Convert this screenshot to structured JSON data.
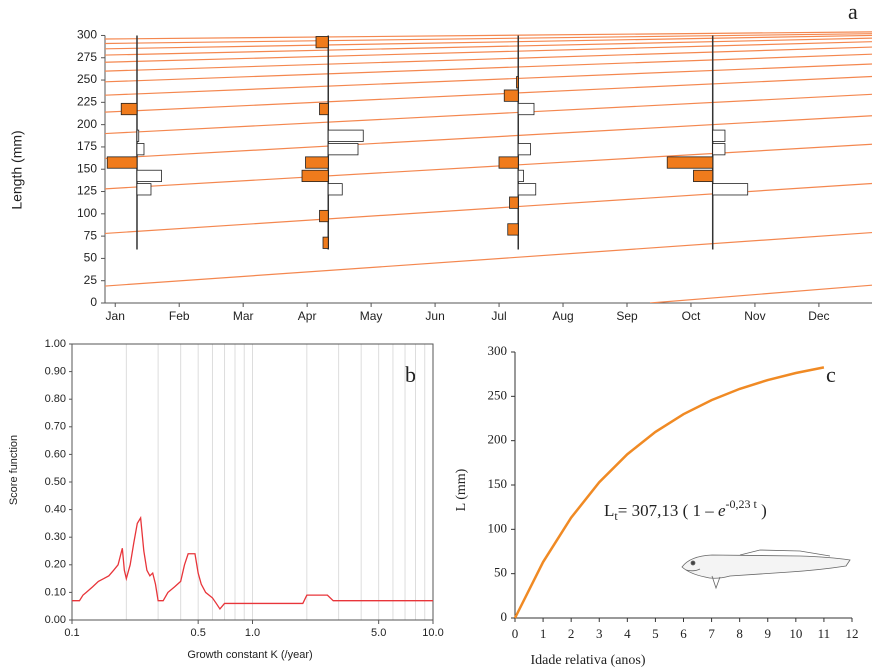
{
  "chart_data": [
    {
      "type": "length-frequency",
      "label": "a",
      "ylabel": "Length (mm)",
      "categories": [
        "Jan",
        "Feb",
        "Mar",
        "Apr",
        "May",
        "Jun",
        "Jul",
        "Aug",
        "Sep",
        "Oct",
        "Nov",
        "Dec"
      ],
      "xlim": [
        -0.16,
        11.83
      ],
      "ylim": [
        0,
        305
      ],
      "yticks": [
        0,
        25,
        50,
        75,
        100,
        125,
        150,
        175,
        200,
        225,
        250,
        275,
        300
      ],
      "bins": [
        60,
        75,
        90,
        105,
        120,
        135,
        150,
        165,
        180,
        195,
        210,
        225,
        240,
        255,
        270,
        285,
        300
      ],
      "positive_color": "#f07b1c",
      "negative_color": "#ffffff",
      "curve_color": "#f4874f",
      "samples": [
        {
          "x": 0.34,
          "values": [
            0,
            0,
            0,
            0,
            -0.4,
            -0.7,
            0.85,
            -0.2,
            -0.05,
            0,
            0.45,
            0,
            0,
            0,
            0,
            0
          ]
        },
        {
          "x": 3.33,
          "values": [
            0.15,
            0,
            0.25,
            0,
            -0.4,
            0.75,
            0.65,
            -0.85,
            -1.0,
            0,
            0.25,
            0,
            0,
            0,
            0,
            0.35
          ]
        },
        {
          "x": 6.3,
          "values": [
            0,
            0.3,
            0,
            0.25,
            -0.5,
            -0.15,
            0.55,
            -0.35,
            0,
            0,
            -0.45,
            0.4,
            0.05,
            0,
            0,
            0
          ]
        },
        {
          "x": 9.34,
          "values": [
            0,
            0,
            0,
            0,
            -1.0,
            0.55,
            1.3,
            -0.35,
            -0.35,
            0,
            0,
            0,
            0,
            0,
            0,
            0
          ]
        }
      ],
      "curves": [
        {
          "x": [
            -0.16,
            11.83
          ],
          "values": [
            19,
            79
          ]
        },
        {
          "x": [
            -0.16,
            11.83
          ],
          "values": [
            78,
            134
          ]
        },
        {
          "x": [
            -0.16,
            11.83
          ],
          "values": [
            128,
            178
          ]
        },
        {
          "x": [
            -0.16,
            11.83
          ],
          "values": [
            162,
            210
          ]
        },
        {
          "x": [
            -0.16,
            11.83
          ],
          "values": [
            190,
            234
          ]
        },
        {
          "x": [
            -0.16,
            11.83
          ],
          "values": [
            214,
            254
          ]
        },
        {
          "x": [
            -0.16,
            11.83
          ],
          "values": [
            233,
            268
          ]
        },
        {
          "x": [
            -0.16,
            11.83
          ],
          "values": [
            248,
            279
          ]
        },
        {
          "x": [
            -0.16,
            11.83
          ],
          "values": [
            260,
            287
          ]
        },
        {
          "x": [
            -0.16,
            11.83
          ],
          "values": [
            270,
            293
          ]
        },
        {
          "x": [
            -0.16,
            11.83
          ],
          "values": [
            278,
            297
          ]
        },
        {
          "x": [
            -0.16,
            11.83
          ],
          "values": [
            285,
            300
          ]
        },
        {
          "x": [
            -0.16,
            11.83
          ],
          "values": [
            291,
            302
          ]
        },
        {
          "x": [
            -0.16,
            11.83
          ],
          "values": [
            296,
            304
          ]
        },
        {
          "x": [
            8.36,
            11.83
          ],
          "values": [
            0,
            20
          ]
        }
      ]
    },
    {
      "type": "log-line",
      "label": "b",
      "xlabel": "Growth constant K (/year)",
      "ylabel": "Score function",
      "color": "#e8353a",
      "xlim": [
        0.1,
        10
      ],
      "ylim": [
        0,
        1
      ],
      "xticks": [
        0.1,
        0.5,
        {
          "value": 1,
          "label": "1.0"
        },
        {
          "value": 5,
          "label": "5.0"
        },
        {
          "value": 10,
          "label": "10.0"
        }
      ],
      "xgrid": [
        0.2,
        0.3,
        0.4,
        0.5,
        0.6,
        0.7,
        0.8,
        0.9,
        1,
        2,
        3,
        4,
        5,
        6,
        7,
        8,
        9
      ],
      "yticks": [
        {
          "value": 0,
          "label": "0.00"
        },
        {
          "value": 0.1,
          "label": "0.10"
        },
        {
          "value": 0.2,
          "label": "0.20"
        },
        {
          "value": 0.3,
          "label": "0.30"
        },
        {
          "value": 0.4,
          "label": "0.40"
        },
        {
          "value": 0.5,
          "label": "0.50"
        },
        {
          "value": 0.6,
          "label": "0.60"
        },
        {
          "value": 0.7,
          "label": "0.70"
        },
        {
          "value": 0.8,
          "label": "0.80"
        },
        {
          "value": 0.9,
          "label": "0.90"
        },
        {
          "value": 1,
          "label": "1.00"
        }
      ],
      "x": [
        0.1,
        0.11,
        0.115,
        0.12,
        0.13,
        0.14,
        0.15,
        0.16,
        0.17,
        0.18,
        0.19,
        0.195,
        0.2,
        0.21,
        0.22,
        0.23,
        0.24,
        0.25,
        0.26,
        0.27,
        0.28,
        0.29,
        0.3,
        0.32,
        0.34,
        0.37,
        0.4,
        0.42,
        0.44,
        0.48,
        0.5,
        0.52,
        0.55,
        0.6,
        0.63,
        0.66,
        0.7,
        1.0,
        1.5,
        1.9,
        2.0,
        2.6,
        2.8,
        5,
        10
      ],
      "values": [
        0.07,
        0.07,
        0.09,
        0.1,
        0.12,
        0.14,
        0.15,
        0.16,
        0.18,
        0.2,
        0.26,
        0.18,
        0.15,
        0.2,
        0.28,
        0.35,
        0.37,
        0.25,
        0.18,
        0.16,
        0.17,
        0.13,
        0.07,
        0.07,
        0.1,
        0.12,
        0.14,
        0.2,
        0.24,
        0.24,
        0.17,
        0.13,
        0.1,
        0.08,
        0.06,
        0.04,
        0.06,
        0.06,
        0.06,
        0.06,
        0.09,
        0.09,
        0.07,
        0.07,
        0.07
      ]
    },
    {
      "type": "line",
      "label": "c",
      "xlabel": "Idade relativa (anos)",
      "ylabel": "L (mm)",
      "color": "#f08a24",
      "xlim": [
        0,
        12
      ],
      "ylim": [
        0,
        300
      ],
      "xticks": [
        0,
        1,
        2,
        3,
        4,
        5,
        6,
        7,
        8,
        9,
        10,
        11,
        12
      ],
      "yticks": [
        0,
        50,
        100,
        150,
        200,
        250,
        300
      ],
      "x": [
        0,
        1,
        2,
        3,
        4,
        5,
        6,
        7,
        8,
        9,
        10,
        11
      ],
      "values": [
        0,
        63.1,
        113.2,
        153.1,
        184.7,
        209.9,
        229.9,
        245.7,
        258.4,
        268.4,
        276.3,
        282.7
      ],
      "equation": {
        "lhs": "L",
        "sub": "t",
        "coef": "= 307,13 ( 1 – ",
        "base": "e",
        "exp": "-0,23 t",
        "close": " )"
      }
    }
  ]
}
